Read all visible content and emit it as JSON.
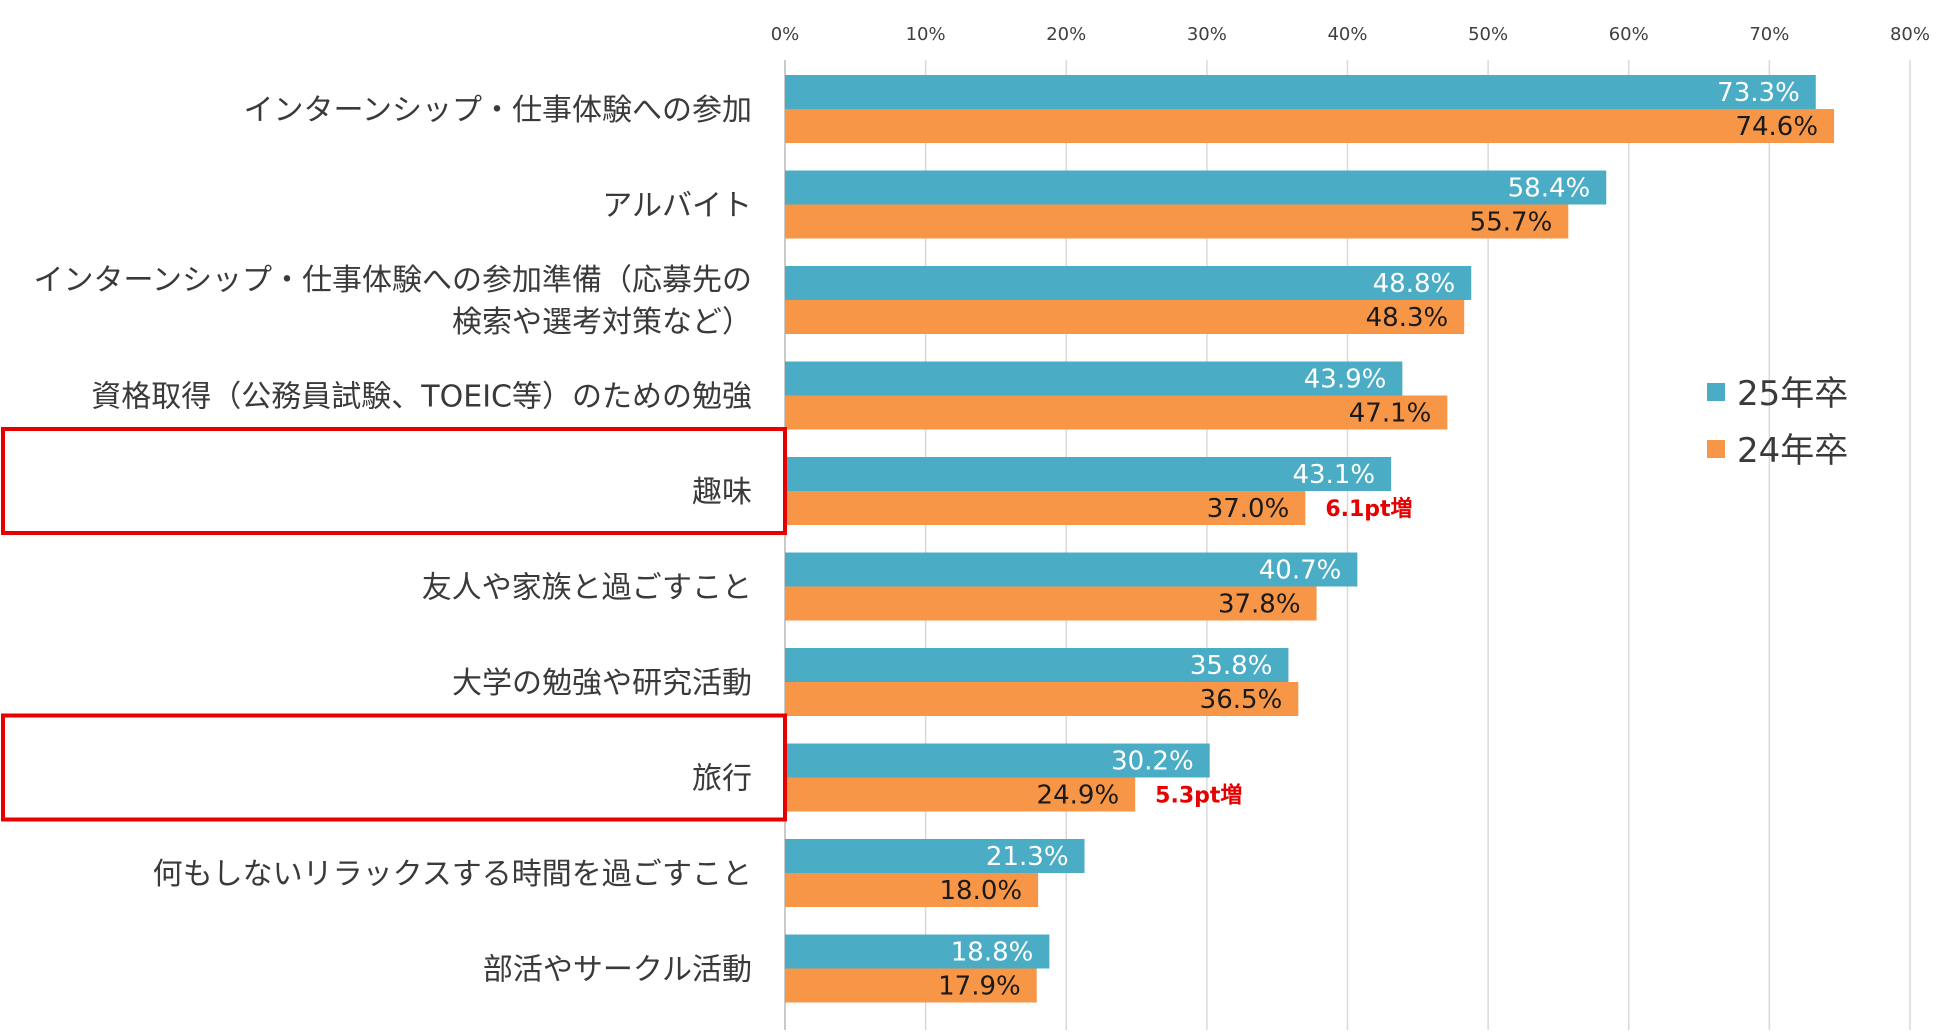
{
  "chart_data": {
    "type": "bar",
    "orientation": "horizontal",
    "categories": [
      [
        "インターンシップ・仕事体験への参加"
      ],
      [
        "アルバイト"
      ],
      [
        "インターンシップ・仕事体験への参加準備（応募先の",
        "検索や選考対策など）"
      ],
      [
        "資格取得（公務員試験、TOEIC等）のための勉強"
      ],
      [
        "趣味"
      ],
      [
        "友人や家族と過ごすこと"
      ],
      [
        "大学の勉強や研究活動"
      ],
      [
        "旅行"
      ],
      [
        "何もしないリラックスする時間を過ごすこと"
      ],
      [
        "部活やサークル活動"
      ]
    ],
    "series": [
      {
        "name": "25年卒",
        "color": "#4bacc6",
        "values": [
          73.3,
          58.4,
          48.8,
          43.9,
          43.1,
          40.7,
          35.8,
          30.2,
          21.3,
          18.8
        ]
      },
      {
        "name": "24年卒",
        "color": "#f79646",
        "values": [
          74.6,
          55.7,
          48.3,
          47.1,
          37.0,
          37.8,
          36.5,
          24.9,
          18.0,
          17.9
        ]
      }
    ],
    "value_suffix": "%",
    "xlim": [
      0,
      80
    ],
    "xticks": [
      0,
      10,
      20,
      30,
      40,
      50,
      60,
      70,
      80
    ],
    "xtick_labels": [
      "0%",
      "10%",
      "20%",
      "30%",
      "40%",
      "50%",
      "60%",
      "70%",
      "80%"
    ],
    "legend_position": "right",
    "annotations": [
      {
        "category_index": 4,
        "text": "6.1pt増"
      },
      {
        "category_index": 7,
        "text": "5.3pt増"
      }
    ],
    "highlighted_categories": [
      4,
      7
    ],
    "highlight_color": "#e60000",
    "gridline_color": "#d9d9d9"
  }
}
